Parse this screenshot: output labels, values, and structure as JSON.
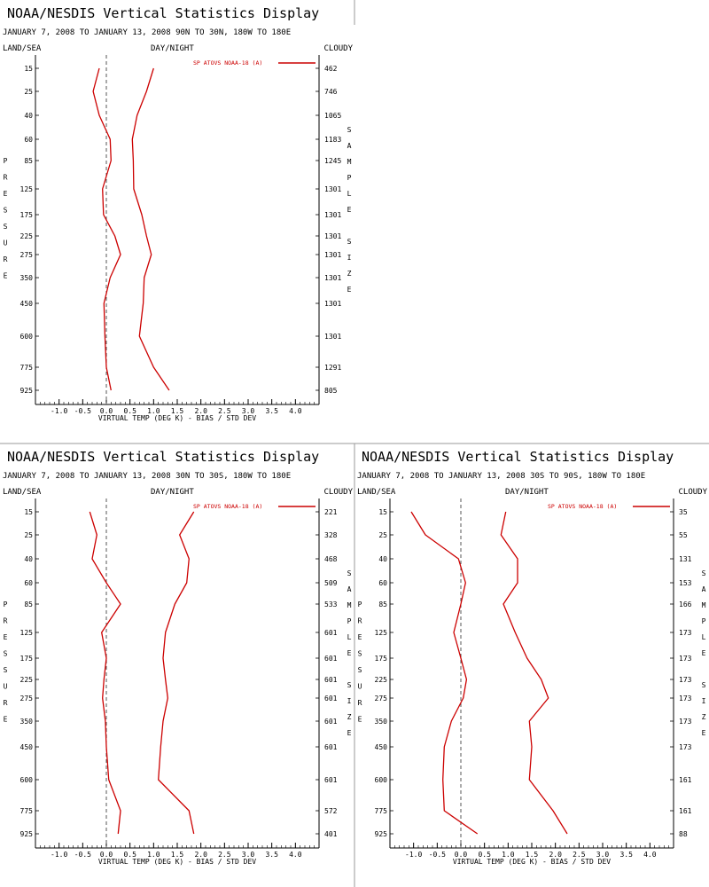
{
  "chart_data": [
    {
      "type": "line",
      "title": "NOAA/NESDIS Vertical Statistics Display",
      "subtitle": "JANUARY 7, 2008 TO JANUARY 13, 2008   90N TO 30N, 180W TO 180E",
      "header_left": "LAND/SEA",
      "header_mid": "DAY/NIGHT",
      "header_right": "CLOUDY",
      "xlabel": "VIRTUAL TEMP (DEG K) - BIAS / STD DEV",
      "ylabel": "PRESSURE",
      "right_label": "SAMPLE SIZE",
      "legend": "SP ATOVS NOAA-18 (A)",
      "xlim": [
        -1.5,
        4.5
      ],
      "xticks": [
        -1.0,
        -0.5,
        0.0,
        0.5,
        1.0,
        1.5,
        2.0,
        2.5,
        3.0,
        3.5,
        4.0
      ],
      "xtick_labels": [
        "-1.0",
        "-0.5",
        "0.0",
        "0.5",
        "1.0",
        "1.5",
        "2.0",
        "2.5",
        "3.0",
        "3.5",
        "4.0"
      ],
      "y": [
        15,
        25,
        40,
        60,
        85,
        125,
        175,
        225,
        275,
        350,
        450,
        600,
        775,
        925
      ],
      "sample_size": [
        "462",
        "746",
        "1065",
        "1183",
        "1245",
        "1301",
        "1301",
        "1301",
        "1301",
        "1301",
        "1301",
        "1301",
        "1291",
        "805"
      ],
      "series": [
        {
          "values": [
            -0.15,
            -0.28,
            -0.15,
            0.08,
            0.1,
            -0.08,
            -0.06,
            0.18,
            0.3,
            0.08,
            -0.05,
            -0.03,
            0.0,
            0.1
          ]
        },
        {
          "values": [
            1.0,
            0.85,
            0.65,
            0.55,
            0.57,
            0.58,
            0.75,
            0.85,
            0.95,
            0.8,
            0.78,
            0.7,
            1.0,
            1.33
          ]
        }
      ]
    },
    {
      "type": "line",
      "title": "NOAA/NESDIS Vertical Statistics Display",
      "subtitle": "JANUARY 7, 2008 TO JANUARY 13, 2008   30N TO 30S, 180W TO 180E",
      "header_left": "LAND/SEA",
      "header_mid": "DAY/NIGHT",
      "header_right": "CLOUDY",
      "xlabel": "VIRTUAL TEMP (DEG K) - BIAS / STD DEV",
      "ylabel": "PRESSURE",
      "right_label": "SAMPLE SIZE",
      "legend": "SP ATOVS NOAA-18 (A)",
      "xlim": [
        -1.5,
        4.5
      ],
      "xticks": [
        -1.0,
        -0.5,
        0.0,
        0.5,
        1.0,
        1.5,
        2.0,
        2.5,
        3.0,
        3.5,
        4.0
      ],
      "xtick_labels": [
        "-1.0",
        "-0.5",
        "0.0",
        "0.5",
        "1.0",
        "1.5",
        "2.0",
        "2.5",
        "3.0",
        "3.5",
        "4.0"
      ],
      "y": [
        15,
        25,
        40,
        60,
        85,
        125,
        175,
        225,
        275,
        350,
        450,
        600,
        775,
        925
      ],
      "sample_size": [
        "221",
        "328",
        "468",
        "509",
        "533",
        "601",
        "601",
        "601",
        "601",
        "601",
        "601",
        "601",
        "572",
        "401"
      ],
      "series": [
        {
          "values": [
            -0.35,
            -0.2,
            -0.3,
            0.0,
            0.3,
            -0.1,
            0.0,
            -0.05,
            -0.08,
            -0.02,
            0.0,
            0.05,
            0.3,
            0.25
          ]
        },
        {
          "values": [
            1.85,
            1.55,
            1.75,
            1.7,
            1.45,
            1.25,
            1.2,
            1.25,
            1.3,
            1.2,
            1.15,
            1.1,
            1.75,
            1.85
          ]
        }
      ]
    },
    {
      "type": "line",
      "title": "NOAA/NESDIS Vertical Statistics Display",
      "subtitle": "JANUARY 7, 2008 TO JANUARY 13, 2008   30S TO 90S, 180W TO 180E",
      "header_left": "LAND/SEA",
      "header_mid": "DAY/NIGHT",
      "header_right": "CLOUDY",
      "xlabel": "VIRTUAL TEMP (DEG K) - BIAS / STD DEV",
      "ylabel": "PRESSURE",
      "right_label": "SAMPLE SIZE",
      "legend": "SP ATOVS NOAA-18 (A)",
      "xlim": [
        -1.5,
        4.5
      ],
      "xticks": [
        -1.0,
        -0.5,
        0.0,
        0.5,
        1.0,
        1.5,
        2.0,
        2.5,
        3.0,
        3.5,
        4.0
      ],
      "xtick_labels": [
        "-1.0",
        "-0.5",
        "0.0",
        "0.5",
        "1.0",
        "1.5",
        "2.0",
        "2.5",
        "3.0",
        "3.5",
        "4.0"
      ],
      "y": [
        15,
        25,
        40,
        60,
        85,
        125,
        175,
        225,
        275,
        350,
        450,
        600,
        775,
        925
      ],
      "sample_size": [
        "35",
        "55",
        "131",
        "153",
        "166",
        "173",
        "173",
        "173",
        "173",
        "173",
        "173",
        "161",
        "161",
        "88"
      ],
      "series": [
        {
          "values": [
            -1.05,
            -0.75,
            -0.05,
            0.1,
            0.0,
            -0.15,
            0.0,
            0.12,
            0.05,
            -0.2,
            -0.35,
            -0.38,
            -0.35,
            0.35
          ]
        },
        {
          "values": [
            0.95,
            0.85,
            1.2,
            1.2,
            0.9,
            1.15,
            1.4,
            1.7,
            1.85,
            1.45,
            1.5,
            1.45,
            1.95,
            2.25
          ]
        }
      ]
    }
  ],
  "colors": {
    "series": "#cc0000",
    "axis": "#000000",
    "zero_line": "#555555",
    "divider": "#999999"
  }
}
